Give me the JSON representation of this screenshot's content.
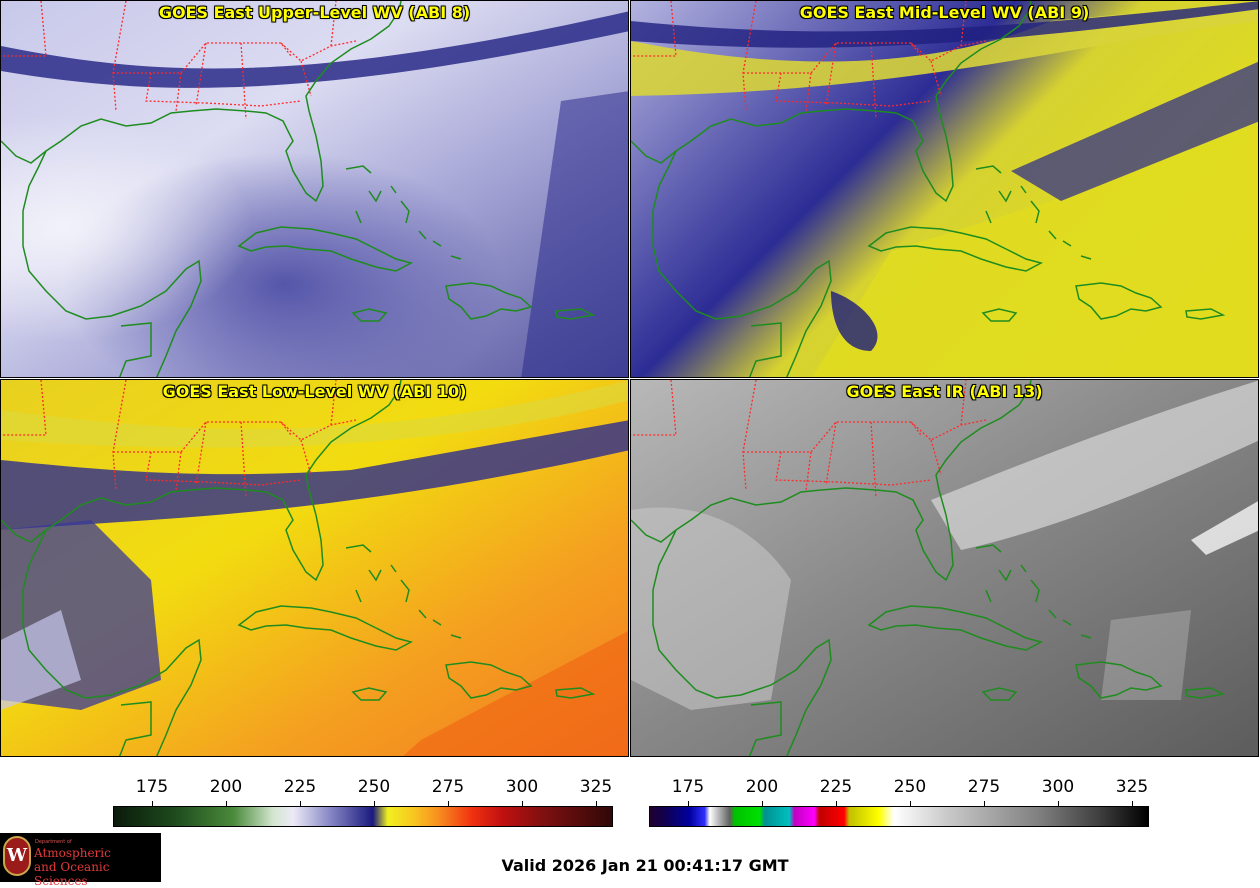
{
  "panels": {
    "upper": {
      "title": "GOES East Upper-Level WV (ABI 8)"
    },
    "mid": {
      "title": "GOES East Mid-Level WV (ABI 9)"
    },
    "low": {
      "title": "GOES East Low-Level WV (ABI 10)"
    },
    "ir": {
      "title": "GOES East IR (ABI 13)"
    }
  },
  "colorbars": {
    "wv": {
      "ticks": [
        "175",
        "200",
        "225",
        "250",
        "275",
        "300",
        "325"
      ]
    },
    "ir": {
      "ticks": [
        "175",
        "200",
        "225",
        "250",
        "275",
        "300",
        "325"
      ]
    }
  },
  "footer": {
    "valid": "Valid 2026 Jan 21 00:41:17 GMT"
  },
  "logo": {
    "dept": "Department of",
    "line1": "Atmospheric",
    "line2": "and Oceanic Sciences",
    "seal_letter": "W"
  },
  "colors": {
    "state_borders": "#ff2020",
    "coastlines": "#1a8a1a",
    "title_text": "#ffff00"
  }
}
